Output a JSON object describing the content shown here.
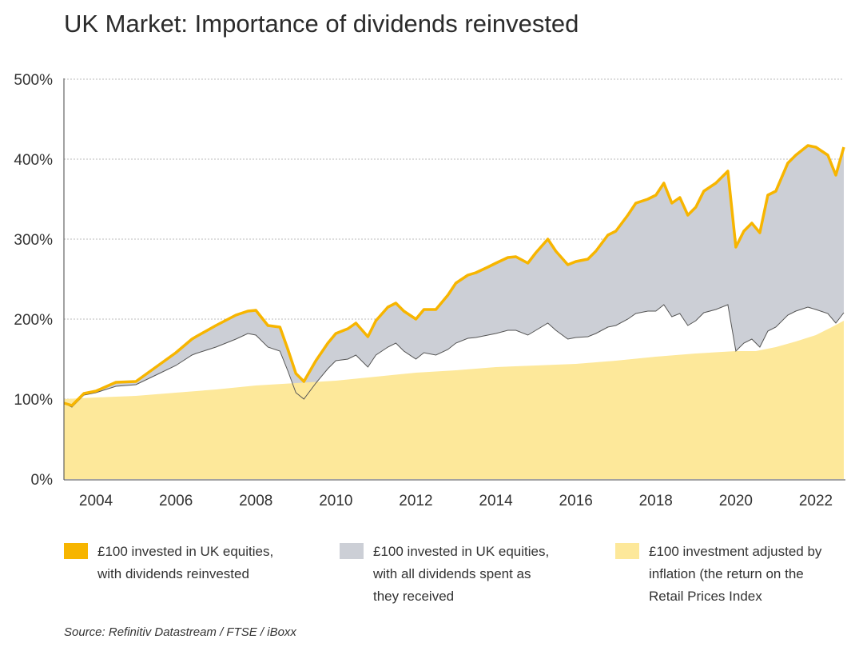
{
  "title": "UK Market: Importance of dividends reinvested",
  "source": "Source: Refinitiv Datastream / FTSE / iBoxx",
  "colors": {
    "reinvested": "#f7b500",
    "spent": "#cccfd6",
    "inflation": "#fde89a",
    "grid": "#bbbbbb"
  },
  "legend": [
    {
      "key": "reinvested",
      "label_line1": "£100 invested in UK equities,",
      "label_line2": "with dividends reinvested",
      "label_line3": ""
    },
    {
      "key": "spent",
      "label_line1": "£100 invested in UK equities,",
      "label_line2": "with all dividends spent as",
      "label_line3": "they received"
    },
    {
      "key": "inflation",
      "label_line1": "£100 investment adjusted by",
      "label_line2": "inflation (the return on the",
      "label_line3": "Retail Prices Index"
    }
  ],
  "chart_data": {
    "type": "area",
    "title": "UK Market: Importance of dividends reinvested",
    "xlabel": "",
    "ylabel": "",
    "xlim": [
      2003.2,
      2022.7
    ],
    "ylim": [
      0,
      500
    ],
    "y_ticks": [
      0,
      100,
      200,
      300,
      400,
      500
    ],
    "y_tick_labels": [
      "0%",
      "100%",
      "200%",
      "300%",
      "400%",
      "500%"
    ],
    "x_tick_labels": [
      "2004",
      "2006",
      "2008",
      "2010",
      "2012",
      "2014",
      "2016",
      "2018",
      "2020",
      "2022"
    ],
    "x_ticks": [
      2004,
      2006,
      2008,
      2010,
      2012,
      2014,
      2016,
      2018,
      2020,
      2022
    ],
    "grid": true,
    "series": [
      {
        "name": "£100 invested in UK equities, with dividends reinvested",
        "x": [
          2003.2,
          2003.4,
          2003.7,
          2004.0,
          2004.5,
          2005.0,
          2005.5,
          2006.0,
          2006.4,
          2006.5,
          2007.0,
          2007.5,
          2007.8,
          2008.0,
          2008.3,
          2008.6,
          2008.8,
          2009.0,
          2009.2,
          2009.5,
          2009.8,
          2010.0,
          2010.3,
          2010.5,
          2010.8,
          2011.0,
          2011.3,
          2011.5,
          2011.7,
          2012.0,
          2012.2,
          2012.5,
          2012.8,
          2013.0,
          2013.3,
          2013.5,
          2013.8,
          2014.0,
          2014.3,
          2014.5,
          2014.8,
          2015.0,
          2015.3,
          2015.5,
          2015.8,
          2016.0,
          2016.3,
          2016.5,
          2016.8,
          2017.0,
          2017.3,
          2017.5,
          2017.8,
          2018.0,
          2018.2,
          2018.4,
          2018.6,
          2018.8,
          2019.0,
          2019.2,
          2019.5,
          2019.8,
          2020.0,
          2020.2,
          2020.4,
          2020.6,
          2020.8,
          2021.0,
          2021.3,
          2021.5,
          2021.8,
          2022.0,
          2022.3,
          2022.5,
          2022.7
        ],
        "values": [
          95,
          92,
          107,
          110,
          121,
          122,
          140,
          158,
          175,
          178,
          192,
          205,
          210,
          211,
          192,
          190,
          162,
          132,
          122,
          148,
          170,
          182,
          188,
          195,
          178,
          198,
          215,
          220,
          210,
          200,
          212,
          212,
          230,
          245,
          255,
          258,
          265,
          270,
          277,
          278,
          270,
          283,
          300,
          285,
          268,
          272,
          275,
          285,
          305,
          310,
          330,
          345,
          350,
          355,
          370,
          345,
          352,
          330,
          340,
          360,
          370,
          385,
          290,
          310,
          320,
          308,
          355,
          360,
          395,
          405,
          417,
          415,
          405,
          380,
          415
        ]
      },
      {
        "name": "£100 invested in UK equities, with all dividends spent as they received",
        "x": [
          2003.2,
          2003.4,
          2003.7,
          2004.0,
          2004.5,
          2005.0,
          2005.5,
          2006.0,
          2006.4,
          2006.5,
          2007.0,
          2007.5,
          2007.8,
          2008.0,
          2008.3,
          2008.6,
          2008.8,
          2009.0,
          2009.2,
          2009.5,
          2009.8,
          2010.0,
          2010.3,
          2010.5,
          2010.8,
          2011.0,
          2011.3,
          2011.5,
          2011.7,
          2012.0,
          2012.2,
          2012.5,
          2012.8,
          2013.0,
          2013.3,
          2013.5,
          2013.8,
          2014.0,
          2014.3,
          2014.5,
          2014.8,
          2015.0,
          2015.3,
          2015.5,
          2015.8,
          2016.0,
          2016.3,
          2016.5,
          2016.8,
          2017.0,
          2017.3,
          2017.5,
          2017.8,
          2018.0,
          2018.2,
          2018.4,
          2018.6,
          2018.8,
          2019.0,
          2019.2,
          2019.5,
          2019.8,
          2020.0,
          2020.2,
          2020.4,
          2020.6,
          2020.8,
          2021.0,
          2021.3,
          2021.5,
          2021.8,
          2022.0,
          2022.3,
          2022.5,
          2022.7
        ],
        "values": [
          95,
          90,
          105,
          108,
          116,
          118,
          130,
          142,
          155,
          157,
          165,
          175,
          182,
          180,
          165,
          160,
          135,
          108,
          100,
          120,
          138,
          148,
          150,
          155,
          140,
          155,
          165,
          170,
          160,
          150,
          158,
          155,
          162,
          170,
          176,
          177,
          180,
          182,
          186,
          186,
          180,
          186,
          195,
          186,
          175,
          177,
          178,
          182,
          190,
          192,
          200,
          207,
          210,
          210,
          218,
          203,
          207,
          192,
          198,
          208,
          212,
          218,
          160,
          170,
          175,
          165,
          185,
          190,
          205,
          210,
          215,
          212,
          207,
          195,
          208
        ]
      },
      {
        "name": "£100 investment adjusted by inflation (the return on the Retail Prices Index",
        "x": [
          2003.2,
          2004.0,
          2005.0,
          2006.0,
          2007.0,
          2008.0,
          2009.0,
          2010.0,
          2011.0,
          2012.0,
          2013.0,
          2014.0,
          2015.0,
          2016.0,
          2017.0,
          2018.0,
          2019.0,
          2020.0,
          2020.5,
          2021.0,
          2021.5,
          2022.0,
          2022.4,
          2022.7
        ],
        "values": [
          100,
          102,
          104,
          108,
          112,
          117,
          120,
          123,
          128,
          133,
          136,
          140,
          142,
          144,
          148,
          153,
          157,
          160,
          160,
          165,
          172,
          180,
          190,
          198
        ]
      }
    ]
  }
}
